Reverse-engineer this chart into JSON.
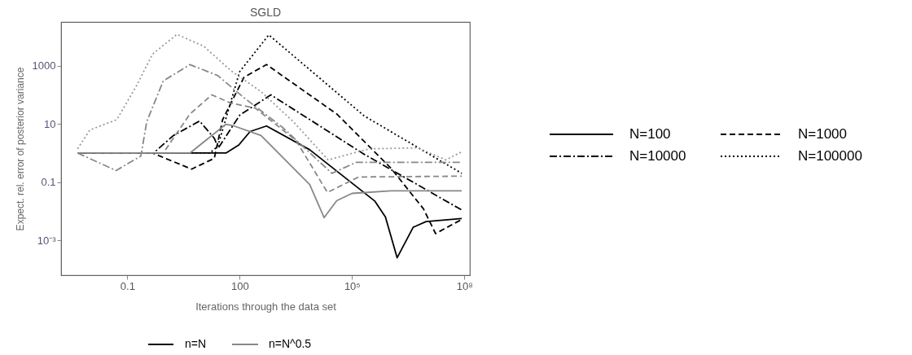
{
  "chart_data": {
    "type": "line",
    "title": "SGLD",
    "xlabel": "Iterations through the data set",
    "ylabel": "Expect. rel. error of posterior variance",
    "log": "xy",
    "grid": false,
    "legend": "right",
    "xlim": [
      0.0017,
      140000000
    ],
    "ylim": [
      6.3e-05,
      32000
    ],
    "xticks": [
      0.1,
      100,
      {
        "value": 100000,
        "label": "10⁵"
      },
      {
        "value": 100000000,
        "label": "10⁸"
      }
    ],
    "yticks": [
      {
        "value": 0.001,
        "label": "10⁻³"
      },
      0.1,
      10,
      1000
    ],
    "annotations": [
      "n=N",
      "n=N^0.5"
    ],
    "series": [
      {
        "name": "N=100",
        "color": "#000000",
        "line_style": "solid",
        "x": [
          0.0047,
          43,
          95,
          190,
          520,
          7400,
          410000,
          780000,
          1600000,
          4300000,
          9500000,
          85000000
        ],
        "values": [
          1,
          1,
          1.9,
          5.5,
          8.5,
          1.3,
          0.022,
          0.0063,
          0.00025,
          0.0028,
          0.0044,
          0.0056
        ]
      },
      {
        "name": "N=1000",
        "color": "#000000",
        "line_style": "dashed",
        "x": [
          0.0047,
          0.47,
          5.2,
          21,
          35,
          130,
          520,
          39000,
          1100000,
          8100000,
          17000000,
          85000000
        ],
        "values": [
          1,
          1,
          0.28,
          0.66,
          14,
          400,
          1100,
          22,
          0.3,
          0.012,
          0.0017,
          0.0052
        ]
      },
      {
        "name": "N=10000",
        "color": "#000000",
        "line_style": "dashdot",
        "x": [
          0.0047,
          0.5,
          1.7,
          8.5,
          21,
          27,
          100,
          680,
          210000,
          85000000
        ],
        "values": [
          1,
          1,
          4,
          12.6,
          3.2,
          1.5,
          20,
          100,
          0.91,
          0.011
        ]
      },
      {
        "name": "N=100000",
        "color": "#000000",
        "line_style": "dotted",
        "x": [
          0.0047,
          16,
          26,
          100,
          600,
          210000,
          85000000
        ],
        "values": [
          1,
          1,
          1.7,
          630,
          11500,
          19,
          0.2
        ]
      },
      {
        "color": "#888888",
        "line_style": "solid",
        "x": [
          0.0047,
          4.7,
          43,
          71,
          370,
          7400,
          18000,
          39000,
          100000,
          1100000,
          85000000
        ],
        "values": [
          1,
          1,
          9.8,
          8.5,
          4,
          0.083,
          0.006,
          0.023,
          0.041,
          0.05,
          0.05
        ]
      },
      {
        "color": "#888888",
        "line_style": "dashed",
        "x": [
          0.0047,
          0.91,
          4.7,
          18,
          58,
          260,
          3200,
          22000,
          150000,
          85000000
        ],
        "values": [
          1,
          1,
          22,
          100,
          52,
          35,
          2.7,
          0.044,
          0.15,
          0.16
        ]
      },
      {
        "color": "#888888",
        "line_style": "dashdot",
        "x": [
          0.0047,
          0.05,
          0.23,
          0.33,
          0.91,
          4.7,
          26,
          130,
          1400,
          29000,
          130000,
          85000000
        ],
        "values": [
          1,
          0.25,
          0.79,
          12,
          300,
          1100,
          460,
          80,
          7.6,
          0.2,
          0.48,
          0.48
        ]
      },
      {
        "color": "#999999",
        "line_style": "dotted",
        "x": [
          0.0047,
          0.01,
          0.052,
          0.17,
          0.47,
          2.1,
          11,
          58,
          370,
          2700,
          23000,
          55000,
          290000,
          5800000,
          32000000,
          85000000
        ],
        "values": [
          1.4,
          6.2,
          14,
          190,
          2500,
          12000,
          4700,
          680,
          130,
          12,
          0.58,
          0.79,
          1.4,
          1.5,
          0.58,
          1.1
        ]
      }
    ]
  }
}
